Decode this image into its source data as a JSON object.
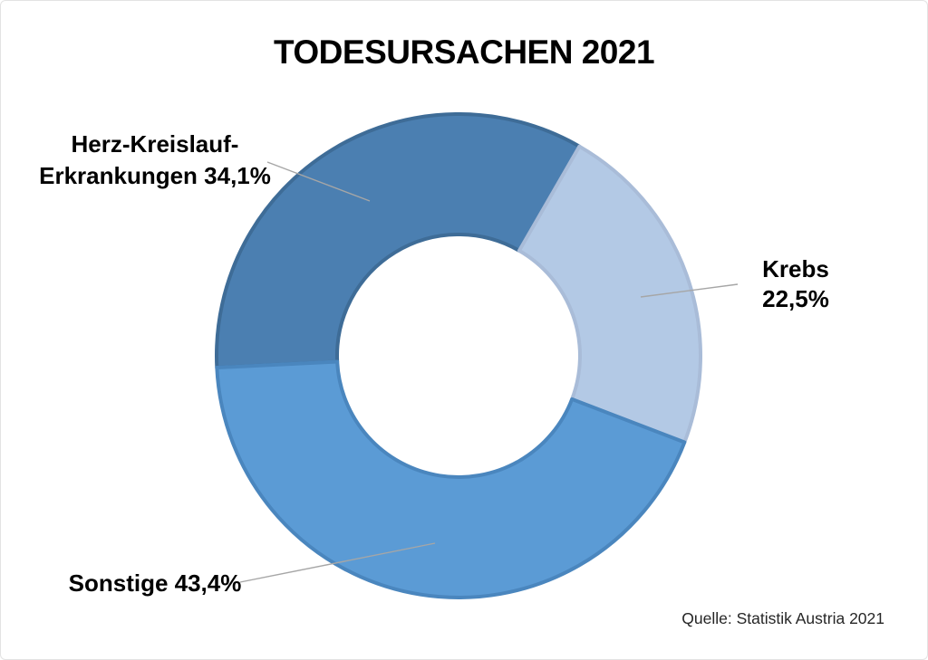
{
  "chart_data": {
    "type": "pie",
    "subtype": "donut",
    "title": "TODESURSACHEN 2021",
    "source": "Quelle: Statistik Austria 2021",
    "start_angle_deg": 267.2,
    "hole_ratio": 0.5,
    "legend_position": "callout-labels",
    "segments": [
      {
        "id": "herz",
        "label": "Herz-Kreislauf-Erkrankungen",
        "value": 34.1,
        "display_value": "34,1%",
        "color": "#4B7FB1",
        "border_color": "#3E6C97"
      },
      {
        "id": "krebs",
        "label": "Krebs",
        "value": 22.5,
        "display_value": "22,5%",
        "color": "#B3C9E5",
        "border_color": "#A9BCD8"
      },
      {
        "id": "sonstige",
        "label": "Sonstige",
        "value": 43.4,
        "display_value": "43,4%",
        "color": "#5B9BD5",
        "border_color": "#4A86BE"
      }
    ]
  },
  "labels": {
    "herz_line1": "Herz-Kreislauf-",
    "herz_line2": "Erkrankungen 34,1%",
    "krebs_line1": "Krebs",
    "krebs_line2": "22,5%",
    "sonstige": "Sonstige 43,4%"
  },
  "colors": {
    "leader_line": "#A6A6A6",
    "title_text": "#000000",
    "source_text": "#262626",
    "background": "#FFFFFF"
  }
}
